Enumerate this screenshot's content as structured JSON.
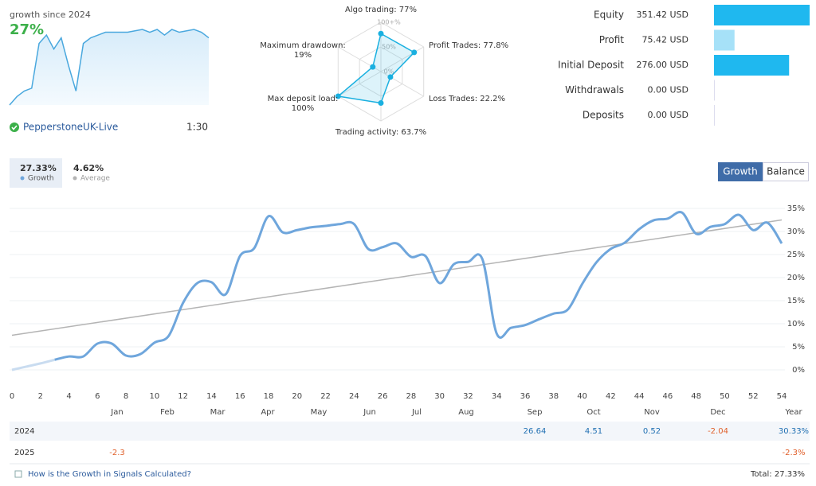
{
  "account": {
    "server": "PepperstoneUK-Live",
    "leverage": "1:30"
  },
  "tabs": {
    "growth_value": "27.33%",
    "growth_label": "Growth",
    "average_value": "4.62%",
    "average_label": "Average",
    "buttons": [
      "Growth",
      "Balance"
    ]
  },
  "chart_data": [
    {
      "type": "sparkline",
      "title": "growth since 2024",
      "headline": "27%",
      "color": "#4aa8de",
      "values": [
        0,
        3,
        5,
        6,
        22,
        25,
        20,
        24,
        14,
        5,
        22,
        24,
        25,
        26,
        26,
        26,
        26,
        26.5,
        27,
        26,
        27,
        25,
        27,
        26,
        26.5,
        27,
        26,
        24
      ]
    },
    {
      "type": "radar",
      "color": "#1ab0e0",
      "categories": [
        [
          "Algo trading: 77%"
        ],
        [
          "Profit Trades: 77.8%"
        ],
        [
          "Loss Trades: 22.2%"
        ],
        [
          "Trading activity: 63.7%"
        ],
        [
          "Max deposit load:",
          "100%"
        ],
        [
          "Maximum drawdown:",
          "19%"
        ]
      ],
      "values": [
        77,
        77.8,
        22.2,
        63.7,
        100,
        19
      ],
      "rlim": [
        0,
        100
      ],
      "rticks": [
        {
          "value": 0,
          "label": "0%"
        },
        {
          "value": 50,
          "label": "50%"
        },
        {
          "value": 100,
          "label": "100+%"
        }
      ]
    },
    {
      "type": "hbar",
      "categories": [
        "Equity",
        "Profit",
        "Initial Deposit",
        "Withdrawals",
        "Deposits"
      ],
      "values": [
        351.42,
        75.42,
        276.0,
        0,
        0
      ],
      "value_labels": [
        "351.42 USD",
        "75.42 USD",
        "276.00 USD",
        "0.00 USD",
        "0.00 USD"
      ],
      "colors": [
        "#1fb8ef",
        "#a6e1f8",
        "#1fb8ef",
        "#1fb8ef",
        "#1fb8ef"
      ]
    },
    {
      "type": "line",
      "xlim": [
        0,
        54
      ],
      "ylim": [
        -3,
        36.5
      ],
      "grid": true,
      "xticks": [
        0,
        2,
        4,
        6,
        8,
        10,
        12,
        14,
        16,
        18,
        20,
        22,
        24,
        26,
        28,
        30,
        32,
        34,
        36,
        38,
        40,
        42,
        44,
        46,
        48,
        50,
        52,
        54
      ],
      "yticks": [
        {
          "value": 0,
          "label": "0%"
        },
        {
          "value": 5,
          "label": "5%"
        },
        {
          "value": 10,
          "label": "10%"
        },
        {
          "value": 15,
          "label": "15%"
        },
        {
          "value": 20,
          "label": "20%"
        },
        {
          "value": 25,
          "label": "25%"
        },
        {
          "value": 30,
          "label": "30%"
        },
        {
          "value": 35,
          "label": "35%"
        }
      ],
      "series": [
        {
          "color": "#c9dcf0",
          "width": 3,
          "x": [
            0,
            1,
            2,
            3
          ],
          "values": [
            0,
            0.7,
            1.4,
            2.2
          ]
        },
        {
          "color": "#6fa6dc",
          "width": 3,
          "x": [
            3,
            4,
            5,
            6,
            7,
            8,
            9,
            10,
            11,
            12,
            13,
            14,
            15,
            16,
            17,
            18,
            19,
            20,
            21,
            22,
            23,
            24,
            25,
            26,
            27,
            28,
            29,
            30,
            31,
            32,
            33,
            34,
            35,
            36,
            37,
            38,
            39,
            40,
            41,
            42,
            43,
            44,
            45,
            46,
            47,
            48,
            49,
            50,
            51,
            52,
            53,
            54
          ],
          "values": [
            2.2,
            2.9,
            2.9,
            5.7,
            5.7,
            3.1,
            3.4,
            5.9,
            7.4,
            14.5,
            18.8,
            19,
            16.4,
            24.7,
            26.4,
            33.3,
            29.8,
            30.3,
            30.9,
            31.2,
            31.6,
            31.6,
            26.2,
            26.6,
            27.4,
            24.5,
            24.7,
            18.8,
            22.9,
            23.4,
            24,
            7.9,
            9.1,
            9.7,
            11,
            12.2,
            13.1,
            18.6,
            23.3,
            26.2,
            27.6,
            30.5,
            32.4,
            32.8,
            34.1,
            29.5,
            31,
            31.6,
            33.6,
            30.3,
            31.9,
            27.4
          ]
        },
        {
          "color": "#b4b4b4",
          "width": 1.5,
          "x": [
            0,
            54
          ],
          "values": [
            7.5,
            32.5
          ]
        }
      ]
    }
  ],
  "table": {
    "columns": [
      "Jan",
      "Feb",
      "Mar",
      "Apr",
      "May",
      "Jun",
      "Jul",
      "Aug",
      "Sep",
      "Oct",
      "Nov",
      "Dec",
      "Year"
    ],
    "rows": [
      {
        "label": "2024",
        "cells": [
          null,
          null,
          null,
          null,
          null,
          null,
          null,
          null,
          "26.64",
          "4.51",
          "0.52",
          "-2.04",
          "30.33%"
        ]
      },
      {
        "label": "2025",
        "cells": [
          "-2.3",
          null,
          null,
          null,
          null,
          null,
          null,
          null,
          null,
          null,
          null,
          null,
          "-2.3%"
        ]
      }
    ]
  },
  "footer": {
    "link": "How is the Growth in Signals Calculated?",
    "total": "Total: 27.33%"
  }
}
